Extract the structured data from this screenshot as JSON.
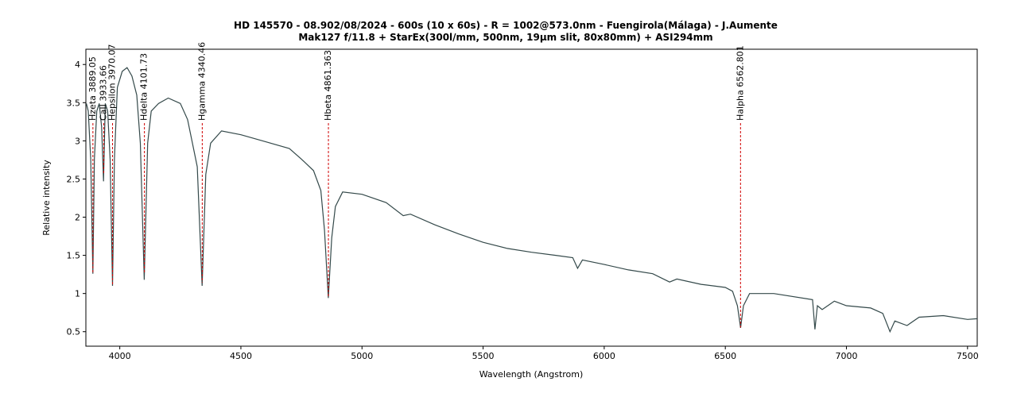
{
  "chart_data": {
    "type": "line",
    "title": "HD 145570 - 08.902/08/2024 - 600s (10 x 60s) - R = 1002@573.0nm - Fuengirola(Málaga) - J.Aumente",
    "subtitle": "Mak127 f/11.8 + StarEx(300l/mm, 500nm, 19µm slit, 80x80mm) + ASI294mm",
    "x_label": "Wavelength (Angstrom)",
    "y_label": "Relative intensity",
    "color": "#34494a",
    "xlim": [
      3860,
      7540
    ],
    "ylim": [
      0.31,
      4.2
    ],
    "xticks": [
      4000,
      4500,
      5000,
      5500,
      6000,
      6500,
      7000,
      7500
    ],
    "yticks": [
      0.5,
      1,
      1.5,
      2,
      2.5,
      3,
      3.5,
      4
    ],
    "x": [
      3862,
      3870,
      3880,
      3889,
      3895,
      3905,
      3915,
      3925,
      3933,
      3940,
      3950,
      3960,
      3970,
      3978,
      3990,
      4010,
      4030,
      4050,
      4070,
      4085,
      4101,
      4115,
      4130,
      4160,
      4200,
      4250,
      4280,
      4300,
      4320,
      4340,
      4355,
      4375,
      4420,
      4500,
      4600,
      4700,
      4750,
      4800,
      4830,
      4845,
      4861,
      4875,
      4890,
      4920,
      5000,
      5100,
      5170,
      5200,
      5300,
      5400,
      5500,
      5600,
      5700,
      5800,
      5870,
      5890,
      5910,
      6000,
      6100,
      6200,
      6270,
      6300,
      6400,
      6500,
      6530,
      6550,
      6563,
      6575,
      6600,
      6700,
      6860,
      6870,
      6880,
      6900,
      6950,
      7000,
      7100,
      7150,
      7180,
      7200,
      7250,
      7300,
      7400,
      7500,
      7540
    ],
    "values": [
      3.49,
      3.39,
      2.76,
      1.26,
      2.76,
      3.39,
      3.49,
      3.18,
      2.47,
      3.49,
      3.39,
      2.76,
      1.1,
      2.76,
      3.7,
      3.91,
      3.96,
      3.85,
      3.6,
      2.97,
      1.18,
      2.97,
      3.39,
      3.49,
      3.56,
      3.49,
      3.28,
      2.97,
      2.66,
      1.1,
      2.56,
      2.97,
      3.13,
      3.08,
      2.99,
      2.9,
      2.76,
      2.61,
      2.35,
      1.83,
      0.94,
      1.73,
      2.14,
      2.33,
      2.3,
      2.19,
      2.02,
      2.04,
      1.9,
      1.78,
      1.67,
      1.59,
      1.54,
      1.5,
      1.47,
      1.33,
      1.44,
      1.38,
      1.31,
      1.26,
      1.15,
      1.19,
      1.12,
      1.08,
      1.03,
      0.84,
      0.55,
      0.84,
      1.0,
      1.0,
      0.92,
      0.53,
      0.84,
      0.79,
      0.9,
      0.84,
      0.81,
      0.74,
      0.5,
      0.64,
      0.58,
      0.69,
      0.71,
      0.66,
      0.67
    ],
    "annotations": [
      {
        "label": "Hzeta 3889.05",
        "x": 3889.05
      },
      {
        "label": "CaII 3933.66",
        "x": 3933.66
      },
      {
        "label": "Hepsilon 3970.07",
        "x": 3970.07
      },
      {
        "label": "Hdelta 4101.73",
        "x": 4101.73
      },
      {
        "label": "Hgamma 4340.46",
        "x": 4340.46
      },
      {
        "label": "Hbeta 4861.363",
        "x": 4861.363
      },
      {
        "label": "Halpha 6562.801",
        "x": 6562.801
      }
    ]
  }
}
